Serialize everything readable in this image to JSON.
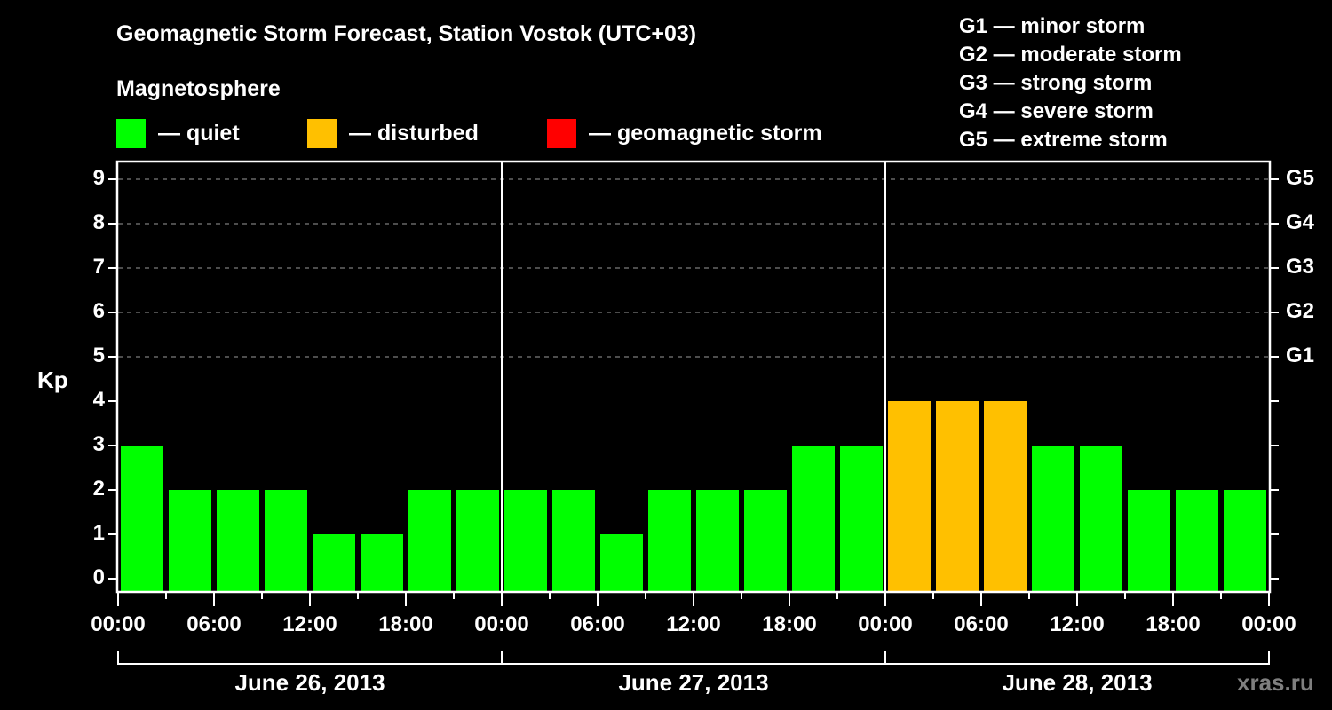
{
  "title": "Geomagnetic Storm Forecast, Station Vostok (UTC+03)",
  "subtitle": "Magnetosphere",
  "legend": [
    {
      "label": "— quiet",
      "color": "#00ff00"
    },
    {
      "label": "— disturbed",
      "color": "#ffc000"
    },
    {
      "label": "— geomagnetic storm",
      "color": "#ff0000"
    }
  ],
  "g_scale": [
    "G1 — minor storm",
    "G2 — moderate storm",
    "G3 — strong storm",
    "G4 — severe storm",
    "G5 — extreme storm"
  ],
  "y_axis_label": "Kp",
  "right_axis_labels": [
    "G1",
    "G2",
    "G3",
    "G4",
    "G5"
  ],
  "watermark": "xras.ru",
  "chart_data": {
    "type": "bar",
    "title": "Geomagnetic Storm Forecast, Station Vostok (UTC+03)",
    "xlabel": "",
    "ylabel": "Kp",
    "ylim": [
      0,
      9
    ],
    "yticks": [
      0,
      1,
      2,
      3,
      4,
      5,
      6,
      7,
      8,
      9
    ],
    "right_yticks": {
      "5": "G1",
      "6": "G2",
      "7": "G3",
      "8": "G4",
      "9": "G5"
    },
    "grid": "dashed horizontal at Kp 5-9",
    "xtick_labels": [
      "00:00",
      "06:00",
      "12:00",
      "18:00",
      "00:00",
      "06:00",
      "12:00",
      "18:00",
      "00:00",
      "06:00",
      "12:00",
      "18:00",
      "00:00"
    ],
    "days": [
      "June 26, 2013",
      "June 27, 2013",
      "June 28, 2013"
    ],
    "interval_hours": 3,
    "categories": [
      "06-26 00:00",
      "06-26 03:00",
      "06-26 06:00",
      "06-26 09:00",
      "06-26 12:00",
      "06-26 15:00",
      "06-26 18:00",
      "06-26 21:00",
      "06-27 00:00",
      "06-27 03:00",
      "06-27 06:00",
      "06-27 09:00",
      "06-27 12:00",
      "06-27 15:00",
      "06-27 18:00",
      "06-27 21:00",
      "06-28 00:00",
      "06-28 03:00",
      "06-28 06:00",
      "06-28 09:00",
      "06-28 12:00",
      "06-28 15:00",
      "06-28 18:00",
      "06-28 21:00"
    ],
    "values": [
      3,
      2,
      2,
      2,
      1,
      1,
      2,
      2,
      2,
      2,
      1,
      2,
      2,
      2,
      3,
      3,
      4,
      4,
      4,
      3,
      3,
      2,
      2,
      2
    ],
    "status": [
      "quiet",
      "quiet",
      "quiet",
      "quiet",
      "quiet",
      "quiet",
      "quiet",
      "quiet",
      "quiet",
      "quiet",
      "quiet",
      "quiet",
      "quiet",
      "quiet",
      "quiet",
      "quiet",
      "disturbed",
      "disturbed",
      "disturbed",
      "quiet",
      "quiet",
      "quiet",
      "quiet",
      "quiet"
    ],
    "colors": {
      "quiet": "#00ff00",
      "disturbed": "#ffc000",
      "storm": "#ff0000"
    },
    "legend": [
      "quiet",
      "disturbed",
      "geomagnetic storm"
    ]
  }
}
